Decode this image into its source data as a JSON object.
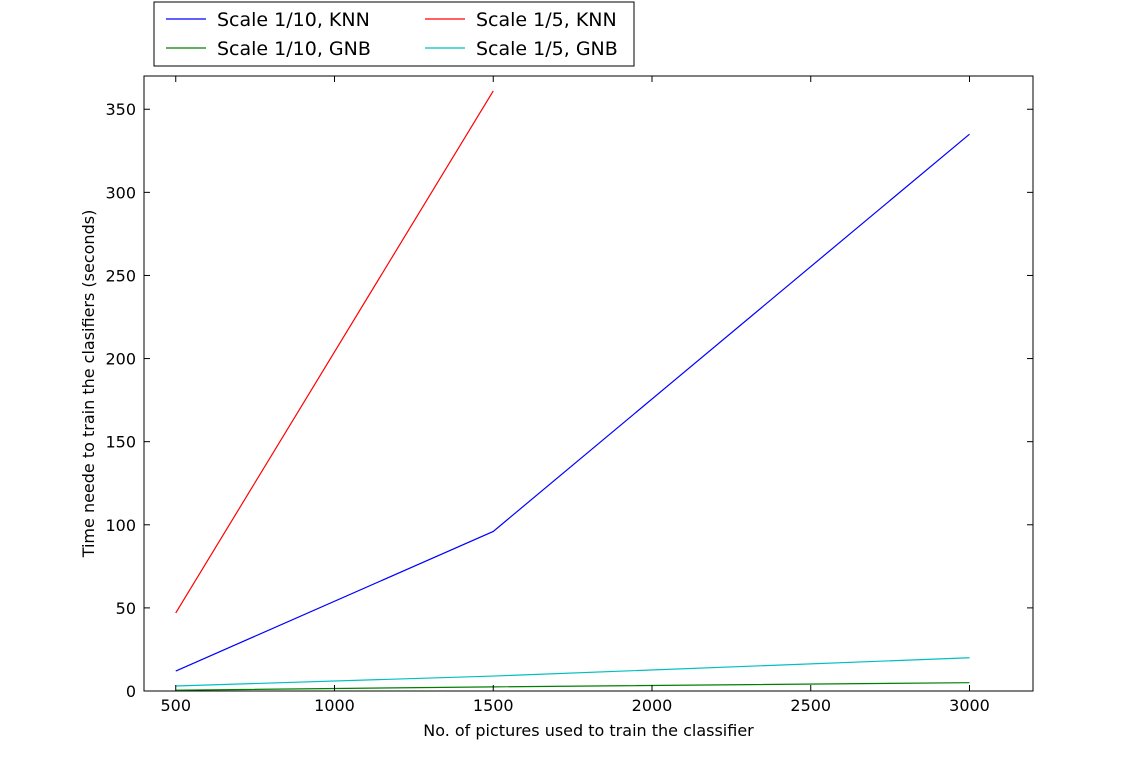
{
  "chart_data": {
    "type": "line",
    "xlabel": "No. of pictures used to train the classifier",
    "ylabel": "Time neede to train the clasifiers (seconds)",
    "xlim": [
      400,
      3200
    ],
    "ylim": [
      0,
      370
    ],
    "xticks": [
      500,
      1000,
      1500,
      2000,
      2500,
      3000
    ],
    "yticks": [
      0,
      50,
      100,
      150,
      200,
      250,
      300,
      350
    ],
    "grid": false,
    "legend_placement": "above plot, top-left, two columns",
    "series": [
      {
        "name": "Scale 1/10, KNN",
        "color": "#0000ff",
        "x": [
          500,
          1500,
          3000
        ],
        "y": [
          12,
          96,
          335
        ]
      },
      {
        "name": "Scale 1/10, GNB",
        "color": "#008000",
        "x": [
          500,
          1500,
          3000
        ],
        "y": [
          0.5,
          2.5,
          5
        ]
      },
      {
        "name": "Scale 1/5, KNN",
        "color": "#ff0000",
        "x": [
          500,
          1500
        ],
        "y": [
          47,
          361
        ]
      },
      {
        "name": "Scale 1/5, GNB",
        "color": "#00bfbf",
        "x": [
          500,
          1500,
          3000
        ],
        "y": [
          3,
          9,
          20
        ]
      }
    ]
  }
}
